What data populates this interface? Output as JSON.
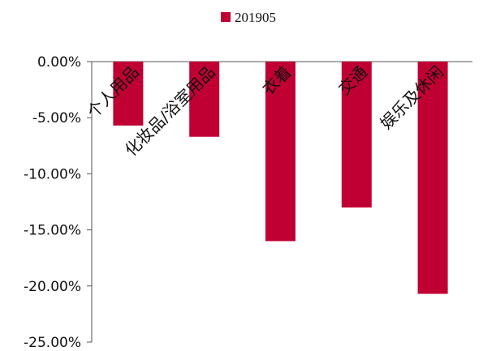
{
  "chart_data": {
    "type": "bar",
    "title": "",
    "xlabel": "",
    "ylabel": "",
    "categories": [
      "个人用品",
      "化妆品/浴室用品",
      "衣着",
      "交通",
      "娱乐及休闲"
    ],
    "series": [
      {
        "name": "201905",
        "values": [
          -5.7,
          -6.7,
          -16.0,
          -13.0,
          -20.7
        ],
        "color": "#c00033"
      }
    ],
    "ylim": [
      -25,
      0
    ],
    "yticks": [
      0,
      -5,
      -10,
      -15,
      -20,
      -25
    ],
    "ytick_labels": [
      "0.00%",
      "-5.00%",
      "-10.00%",
      "-15.00%",
      "-20.00%",
      "-25.00%"
    ],
    "grid": false,
    "legend": {
      "placement": "top-center"
    }
  }
}
